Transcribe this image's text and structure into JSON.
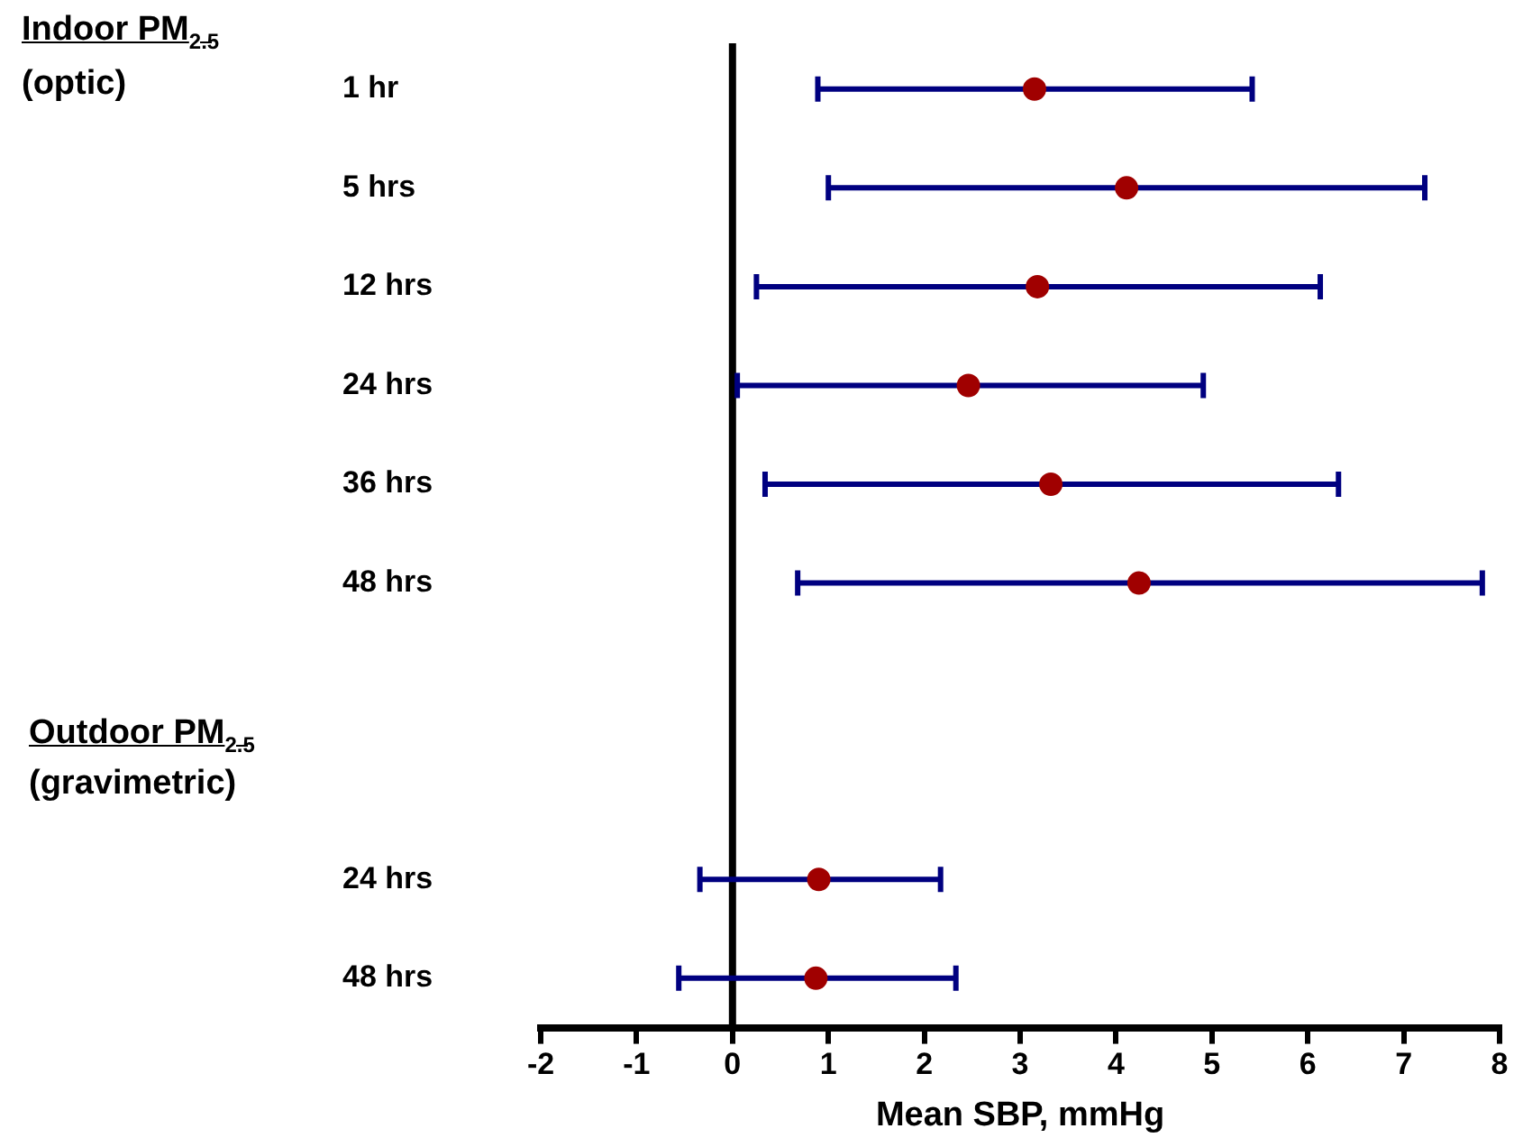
{
  "chart_data": {
    "type": "scatter",
    "orientation": "horizontal",
    "xlabel": "Mean SBP, mmHg",
    "categories": [
      "1 hr",
      "5 hrs",
      "12 hrs",
      "24 hrs",
      "36 hrs",
      "48 hrs",
      null,
      null,
      "24 hrs",
      "48 hrs"
    ],
    "series": [
      {
        "color": "#a00000",
        "values": [
          3.15,
          4.11,
          3.18,
          2.46,
          3.32,
          4.24,
          null,
          null,
          0.9,
          0.87
        ],
        "errors": [
          [
            0.89,
            5.42
          ],
          [
            1.0,
            7.22
          ],
          [
            0.25,
            6.13
          ],
          [
            0.05,
            4.91
          ],
          [
            0.34,
            6.32
          ],
          [
            0.68,
            7.82
          ],
          null,
          null,
          [
            -0.34,
            2.17
          ],
          [
            -0.56,
            2.33
          ]
        ]
      }
    ],
    "xlim": [
      -2,
      8
    ],
    "xticks": [
      -2,
      -1,
      0,
      1,
      2,
      3,
      4,
      5,
      6,
      7,
      8
    ],
    "ref_lines": [
      {
        "axis": "x",
        "value": 0,
        "color": "#000000"
      }
    ],
    "annotations": [
      "Indoor PM$_{2.5}$",
      "(optic)",
      "Outdoor PM$_{2.5}$",
      "(gravimetric)"
    ],
    "marker": "circle",
    "grid": false,
    "legend": false
  }
}
